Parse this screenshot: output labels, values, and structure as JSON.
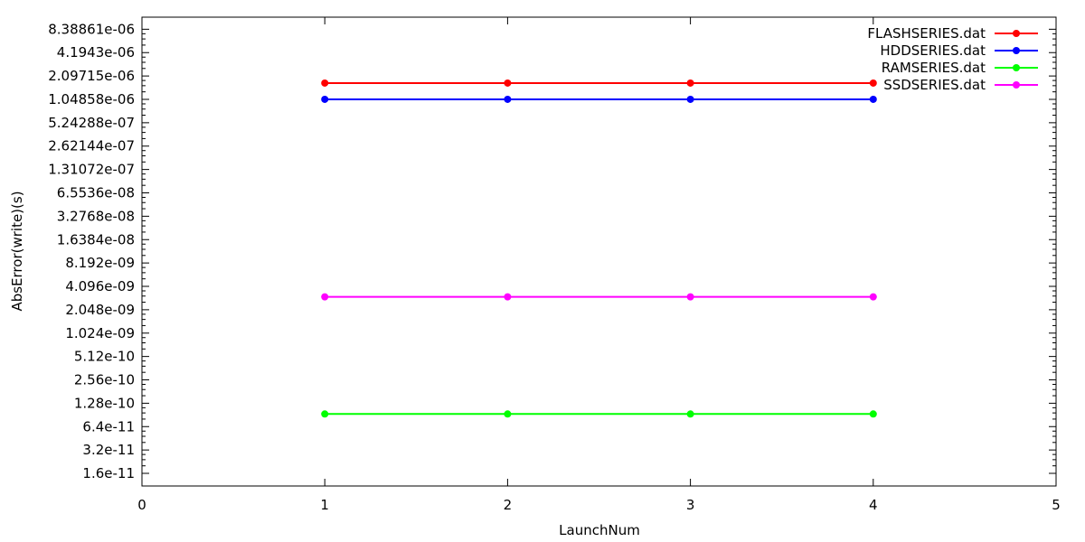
{
  "chart_data": {
    "type": "line",
    "xlabel": "LaunchNum",
    "ylabel": "AbsError(write)(s)",
    "yscale": "log2",
    "xlim": [
      0,
      5
    ],
    "ylim": [
      1.1e-11,
      1.2e-05
    ],
    "grid": false,
    "legend_position": "top-right",
    "x_ticks": [
      0,
      1,
      2,
      3,
      4,
      5
    ],
    "x_tick_labels": [
      "0",
      "1",
      "2",
      "3",
      "4",
      "5"
    ],
    "y_ticks": [
      1.6e-11,
      3.2e-11,
      6.4e-11,
      1.28e-10,
      2.56e-10,
      5.12e-10,
      1.024e-09,
      2.048e-09,
      4.096e-09,
      8.192e-09,
      1.6384e-08,
      3.2768e-08,
      6.5536e-08,
      1.31072e-07,
      2.62144e-07,
      5.24288e-07,
      1.04858e-06,
      2.09715e-06,
      4.1943e-06,
      8.38861e-06
    ],
    "y_tick_labels": [
      "1.6e-11",
      "3.2e-11",
      "6.4e-11",
      "1.28e-10",
      "2.56e-10",
      "5.12e-10",
      "1.024e-09",
      "2.048e-09",
      "4.096e-09",
      "8.192e-09",
      "1.6384e-08",
      "3.2768e-08",
      "6.5536e-08",
      "1.31072e-07",
      "2.62144e-07",
      "5.24288e-07",
      "1.04858e-06",
      "2.09715e-06",
      "4.1943e-06",
      "8.38861e-06"
    ],
    "x": [
      1,
      2,
      3,
      4
    ],
    "series": [
      {
        "name": "FLASHSERIES.dat",
        "color": "#ff0000",
        "values": [
          1.7e-06,
          1.7e-06,
          1.7e-06,
          1.7e-06
        ]
      },
      {
        "name": "HDDSERIES.dat",
        "color": "#0000ff",
        "values": [
          1.05e-06,
          1.05e-06,
          1.05e-06,
          1.05e-06
        ]
      },
      {
        "name": "RAMSERIES.dat",
        "color": "#00ff00",
        "values": [
          9.3e-11,
          9.3e-11,
          9.3e-11,
          9.3e-11
        ]
      },
      {
        "name": "SSDSERIES.dat",
        "color": "#ff00ff",
        "values": [
          3e-09,
          3e-09,
          3e-09,
          3e-09
        ]
      }
    ]
  }
}
